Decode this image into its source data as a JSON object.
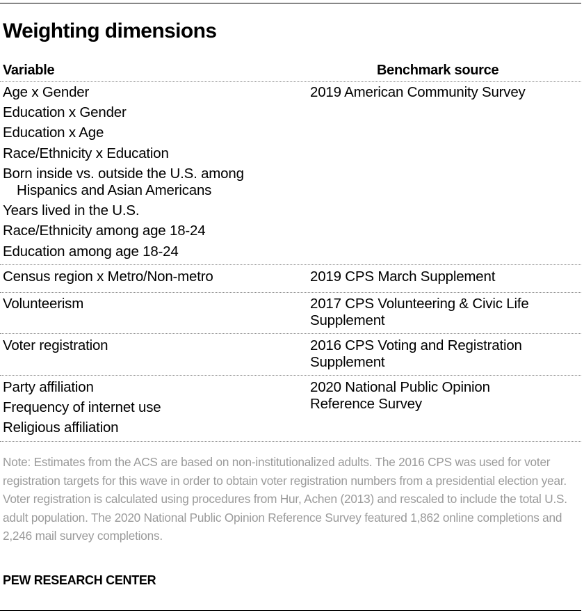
{
  "title": "Weighting dimensions",
  "headers": {
    "variable": "Variable",
    "source": "Benchmark source"
  },
  "groups": [
    {
      "variables": [
        "Age x Gender",
        "Education x Gender",
        "Education x Age",
        "Race/Ethnicity x Education",
        "Born inside vs. outside the U.S. among",
        "Hispanics and Asian Americans",
        "Years lived in the U.S.",
        "Race/Ethnicity among age 18-24",
        "Education among age 18-24"
      ],
      "source": [
        "2019 American Community Survey"
      ]
    },
    {
      "variables": [
        "Census region x Metro/Non-metro"
      ],
      "source": [
        "2019 CPS March Supplement"
      ]
    },
    {
      "variables": [
        "Volunteerism"
      ],
      "source": [
        "2017 CPS Volunteering & Civic Life",
        "Supplement"
      ]
    },
    {
      "variables": [
        "Voter registration"
      ],
      "source": [
        "2016 CPS Voting and Registration",
        "Supplement"
      ]
    },
    {
      "variables": [
        "Party affiliation",
        "Frequency of internet use",
        "Religious affiliation"
      ],
      "source": [
        "2020 National Public Opinion",
        "Reference Survey"
      ]
    }
  ],
  "note": "Note: Estimates from the ACS are based on non-institutionalized adults.  The 2016 CPS was used for voter registration targets for this wave in order to obtain voter registration numbers from a presidential election year. Voter registration is calculated using procedures from Hur, Achen (2013) and rescaled to include the total U.S. adult population. The 2020 National Public Opinion Reference Survey featured 1,862 online completions and 2,246 mail survey completions.",
  "source_label": "PEW RESEARCH CENTER"
}
